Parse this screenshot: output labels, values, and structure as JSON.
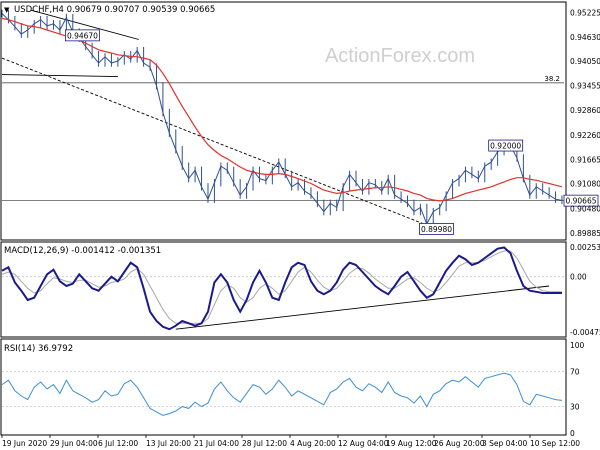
{
  "header": {
    "symbol_line": "USDCHF,H4  0.90679 0.90707 0.90539 0.90665",
    "collapse_glyph": "▼"
  },
  "watermark": "ActionForex.com",
  "colors": {
    "price_bars": "#2f4f8f",
    "moving_average": "#e0332b",
    "macd_line": "#1a1a8c",
    "signal_line": "#a8a8a8",
    "rsi_line": "#3b8fd6",
    "trendlines": "#000000",
    "grid": "#c8c8c8",
    "label_box_border": "#1a1a8c"
  },
  "chart_data": [
    {
      "id": "price",
      "type": "line",
      "title": "USDCHF,H4  0.90679 0.90707 0.90539 0.90665",
      "ylim": [
        0.8976,
        0.9543
      ],
      "y_ticks": [
        "0.95225",
        "0.94630",
        "0.94050",
        "0.93455",
        "0.92860",
        "0.92260",
        "0.91665",
        "0.91080",
        "0.90480",
        "0.89885"
      ],
      "x_tick_labels": [
        "19 Jun 2020",
        "29 Jun 04:00",
        "6 Jul 12:00",
        "13 Jul 20:00",
        "21 Jul 04:00",
        "28 Jul 12:00",
        "4 Aug 20:00",
        "12 Aug 04:00",
        "19 Aug 12:00",
        "26 Aug 20:00",
        "3 Sep 04:00",
        "10 Sep 12:00"
      ],
      "x": [
        0,
        4,
        8,
        12,
        16,
        20,
        24,
        28,
        32,
        36,
        40,
        44,
        48,
        52,
        56,
        60,
        64,
        68,
        72,
        76,
        80,
        84,
        88,
        92,
        96,
        100,
        104,
        108,
        112,
        116,
        120,
        124,
        128,
        132,
        136,
        140,
        144,
        148,
        152,
        156,
        160,
        164,
        168,
        172,
        176,
        180,
        184,
        188,
        192,
        196,
        200,
        204,
        208,
        212,
        216,
        220,
        224,
        228,
        232,
        236,
        240,
        244,
        248,
        252,
        256,
        260,
        264,
        268,
        272,
        276,
        280,
        284,
        288,
        292,
        296,
        300,
        304,
        308,
        312,
        316,
        320,
        324,
        328,
        332,
        336,
        340,
        344,
        348
      ],
      "series": [
        {
          "type": "line",
          "values": [
            0.952,
            0.9505,
            0.9488,
            0.947,
            0.948,
            0.9495,
            0.9505,
            0.949,
            0.9495,
            0.948,
            0.951,
            0.9475,
            0.946,
            0.944,
            0.942,
            0.94,
            0.9415,
            0.94,
            0.9405,
            0.942,
            0.941,
            0.943,
            0.94,
            0.939,
            0.9345,
            0.928,
            0.923,
            0.919,
            0.915,
            0.912,
            0.914,
            0.91,
            0.907,
            0.911,
            0.915,
            0.914,
            0.911,
            0.908,
            0.91,
            0.914,
            0.912,
            0.9115,
            0.914,
            0.916,
            0.913,
            0.91,
            0.911,
            0.909,
            0.908,
            0.906,
            0.904,
            0.906,
            0.905,
            0.91,
            0.913,
            0.911,
            0.909,
            0.911,
            0.9105,
            0.909,
            0.912,
            0.908,
            0.907,
            0.906,
            0.904,
            0.905,
            0.901,
            0.904,
            0.905,
            0.908,
            0.911,
            0.912,
            0.914,
            0.913,
            0.912,
            0.915,
            0.916,
            0.9185,
            0.9195,
            0.92,
            0.917,
            0.912,
            0.908,
            0.91,
            0.909,
            0.908,
            0.907,
            0.9067
          ]
        },
        {
          "type": "line",
          "values": [
            0.9508,
            0.9505,
            0.95,
            0.9495,
            0.949,
            0.9488,
            0.9485,
            0.948,
            0.9475,
            0.947,
            0.9465,
            0.946,
            0.9455,
            0.9448,
            0.944,
            0.9432,
            0.9428,
            0.9424,
            0.942,
            0.9418,
            0.9416,
            0.9415,
            0.9412,
            0.9408,
            0.9395,
            0.9375,
            0.935,
            0.9322,
            0.9295,
            0.927,
            0.9245,
            0.9222,
            0.9202,
            0.9188,
            0.9176,
            0.9168,
            0.9158,
            0.9148,
            0.914,
            0.9136,
            0.9132,
            0.913,
            0.913,
            0.9132,
            0.913,
            0.9125,
            0.912,
            0.9114,
            0.9108,
            0.91,
            0.9092,
            0.9088,
            0.9084,
            0.9086,
            0.909,
            0.9092,
            0.9094,
            0.9096,
            0.9098,
            0.9098,
            0.91,
            0.9098,
            0.9094,
            0.909,
            0.9084,
            0.908,
            0.9072,
            0.9068,
            0.9066,
            0.9068,
            0.9072,
            0.9078,
            0.9084,
            0.9088,
            0.9092,
            0.9096,
            0.91,
            0.9106,
            0.9112,
            0.9118,
            0.9122,
            0.9122,
            0.9118,
            0.9116,
            0.9112,
            0.9108,
            0.9104,
            0.91
          ]
        }
      ],
      "price_labels": [
        {
          "text": "0.94670",
          "x": 50,
          "y": 0.9467
        },
        {
          "text": "0.92000",
          "x": 313,
          "y": 0.92
        },
        {
          "text": "0.89980",
          "x": 270,
          "y": 0.8998
        },
        {
          "text": "0.90665",
          "x": 348,
          "y": 0.90665
        },
        {
          "text": "38.2",
          "x": 346,
          "y": 0.9352
        }
      ],
      "horizontal_lines": [
        0.9352,
        0.90665
      ],
      "trendlines": [
        {
          "style": "solid",
          "points": [
            [
              18,
              0.9528
            ],
            [
              85,
              0.9457
            ]
          ]
        },
        {
          "style": "solid",
          "points": [
            [
              0,
              0.9372
            ],
            [
              72,
              0.9367
            ]
          ]
        },
        {
          "style": "dashed",
          "points": [
            [
              0,
              0.9412
            ],
            [
              270,
              0.8998
            ]
          ]
        }
      ]
    },
    {
      "id": "macd",
      "type": "line",
      "title": "MACD(12,26,9) -0.001412 -0.001351",
      "ylim": [
        -0.005,
        0.0028
      ],
      "y_ticks": [
        "0.002532",
        "0.00",
        "-0.004756"
      ],
      "x": [
        0,
        4,
        8,
        12,
        16,
        20,
        24,
        28,
        32,
        36,
        40,
        44,
        48,
        52,
        56,
        60,
        64,
        68,
        72,
        76,
        80,
        84,
        88,
        92,
        96,
        100,
        104,
        108,
        112,
        116,
        120,
        124,
        128,
        132,
        136,
        140,
        144,
        148,
        152,
        156,
        160,
        164,
        168,
        172,
        176,
        180,
        184,
        188,
        192,
        196,
        200,
        204,
        208,
        212,
        216,
        220,
        224,
        228,
        232,
        236,
        240,
        244,
        248,
        252,
        256,
        260,
        264,
        268,
        272,
        276,
        280,
        284,
        288,
        292,
        296,
        300,
        304,
        308,
        312,
        316,
        320,
        324,
        328,
        332,
        336,
        340,
        344,
        348
      ],
      "series": [
        {
          "name": "MACD(12,26,9)",
          "values": [
            0.0005,
            0.0008,
            -0.0005,
            -0.0012,
            -0.002,
            -0.0018,
            -0.0008,
            0.0002,
            0.0006,
            -0.0004,
            -0.0008,
            -0.0006,
            0.0002,
            -0.0004,
            -0.001,
            -0.0012,
            -0.0006,
            0.0,
            -0.0004,
            0.0004,
            0.0012,
            0.0008,
            -0.001,
            -0.003,
            -0.0038,
            -0.0043,
            -0.0045,
            -0.0042,
            -0.0038,
            -0.004,
            -0.0042,
            -0.004,
            -0.003,
            -0.0005,
            0.0002,
            -0.0005,
            -0.002,
            -0.003,
            -0.002,
            -0.0005,
            0.0005,
            -0.0005,
            -0.0018,
            -0.002,
            -0.0005,
            0.0008,
            0.0012,
            0.001,
            -0.0004,
            -0.0012,
            -0.0015,
            -0.0012,
            -0.0005,
            0.0006,
            0.0012,
            0.001,
            0.0004,
            -0.0002,
            -0.0008,
            -0.0012,
            -0.0015,
            -0.0008,
            0.0,
            0.0004,
            -0.0004,
            -0.0012,
            -0.0018,
            -0.0015,
            -0.0005,
            0.0005,
            0.0012,
            0.0018,
            0.0015,
            0.001,
            0.0012,
            0.0016,
            0.002,
            0.0024,
            0.0025,
            0.002,
            0.0005,
            -0.0008,
            -0.0012,
            -0.0013,
            -0.0014,
            -0.0014,
            -0.0014,
            -0.0014
          ]
        },
        {
          "values": [
            0.0002,
            0.0004,
            0.0002,
            -0.0004,
            -0.001,
            -0.0014,
            -0.0012,
            -0.0006,
            -0.0001,
            -0.0002,
            -0.0004,
            -0.0005,
            -0.0003,
            -0.0003,
            -0.0006,
            -0.0009,
            -0.0008,
            -0.0005,
            -0.0004,
            -0.0002,
            0.0004,
            0.0007,
            0.0002,
            -0.0008,
            -0.0018,
            -0.0028,
            -0.0036,
            -0.004,
            -0.004,
            -0.004,
            -0.004,
            -0.004,
            -0.0036,
            -0.0024,
            -0.0012,
            -0.0007,
            -0.001,
            -0.0018,
            -0.0022,
            -0.0018,
            -0.001,
            -0.0006,
            -0.001,
            -0.0015,
            -0.0012,
            -0.0004,
            0.0004,
            0.0008,
            0.0004,
            -0.0003,
            -0.0009,
            -0.0012,
            -0.001,
            -0.0004,
            0.0003,
            0.0007,
            0.0007,
            0.0003,
            -0.0002,
            -0.0006,
            -0.001,
            -0.001,
            -0.0006,
            -0.0002,
            -0.0001,
            -0.0005,
            -0.001,
            -0.0013,
            -0.0011,
            -0.0005,
            0.0002,
            0.0009,
            0.0012,
            0.0012,
            0.0012,
            0.0014,
            0.0017,
            0.002,
            0.0022,
            0.0022,
            0.0016,
            0.0006,
            -0.0004,
            -0.0009,
            -0.0012,
            -0.0013,
            -0.0013,
            -0.0013
          ]
        }
      ],
      "trendlines": [
        {
          "style": "solid",
          "points": [
            [
              108,
              -0.0045
            ],
            [
              340,
              -0.0008
            ]
          ]
        }
      ]
    },
    {
      "id": "rsi",
      "type": "line",
      "title": "RSI(14) 36.9792",
      "ylim": [
        0,
        100
      ],
      "y_ticks": [
        "100",
        "70",
        "30",
        "0"
      ],
      "reference_levels": [
        70,
        30
      ],
      "x": [
        0,
        4,
        8,
        12,
        16,
        20,
        24,
        28,
        32,
        36,
        40,
        44,
        48,
        52,
        56,
        60,
        64,
        68,
        72,
        76,
        80,
        84,
        88,
        92,
        96,
        100,
        104,
        108,
        112,
        116,
        120,
        124,
        128,
        132,
        136,
        140,
        144,
        148,
        152,
        156,
        160,
        164,
        168,
        172,
        176,
        180,
        184,
        188,
        192,
        196,
        200,
        204,
        208,
        212,
        216,
        220,
        224,
        228,
        232,
        236,
        240,
        244,
        248,
        252,
        256,
        260,
        264,
        268,
        272,
        276,
        280,
        284,
        288,
        292,
        296,
        300,
        304,
        308,
        312,
        316,
        320,
        324,
        328,
        332,
        336,
        340,
        344,
        348
      ],
      "series": [
        {
          "name": "RSI(14)",
          "values": [
            55,
            60,
            48,
            42,
            38,
            52,
            58,
            50,
            55,
            45,
            60,
            48,
            44,
            40,
            35,
            38,
            48,
            42,
            44,
            56,
            60,
            52,
            40,
            28,
            24,
            20,
            22,
            25,
            30,
            28,
            35,
            30,
            34,
            50,
            58,
            48,
            40,
            35,
            45,
            55,
            52,
            44,
            50,
            60,
            52,
            42,
            48,
            44,
            40,
            36,
            32,
            46,
            50,
            58,
            62,
            52,
            48,
            56,
            52,
            46,
            58,
            46,
            42,
            40,
            34,
            42,
            30,
            44,
            48,
            56,
            60,
            58,
            64,
            58,
            52,
            62,
            64,
            66,
            68,
            66,
            55,
            36,
            32,
            44,
            42,
            40,
            38,
            37
          ]
        }
      ]
    }
  ]
}
